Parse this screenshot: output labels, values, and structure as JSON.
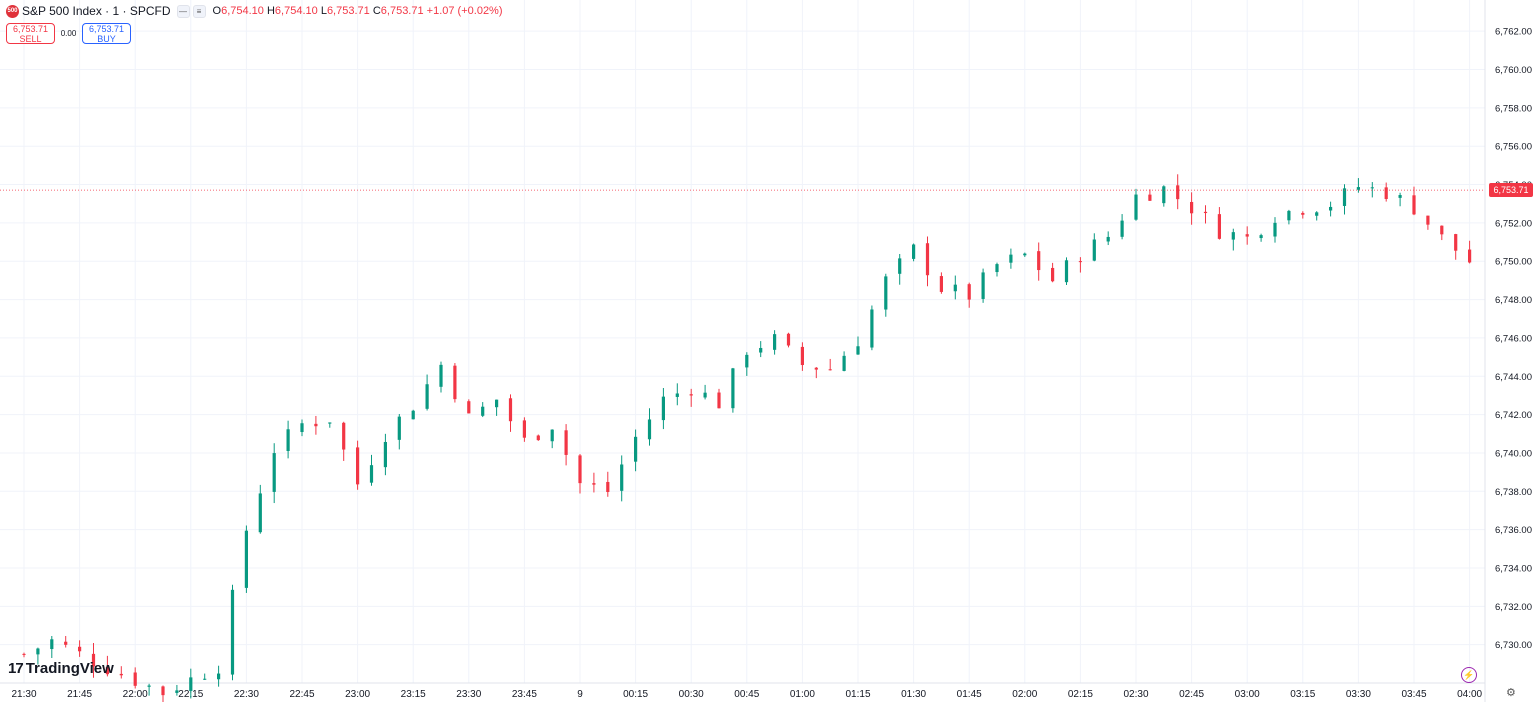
{
  "header": {
    "symbol_badge": "500",
    "symbol_title": "S&P 500 Index · 1 · SPCFD",
    "ohlc": {
      "o_label": "O",
      "o_value": "6,754.10",
      "h_label": "H",
      "h_value": "6,754.10",
      "l_label": "L",
      "l_value": "6,753.71",
      "c_label": "C",
      "c_value": "6,753.71",
      "change": "+1.07 (+0.02%)"
    }
  },
  "trade": {
    "sell_price": "6,753.71",
    "sell_label": "SELL",
    "spread": "0.00",
    "buy_price": "6,753.71",
    "buy_label": "BUY"
  },
  "branding": {
    "logo_text": "TradingView",
    "logo_icon": "tradingview-logo-icon"
  },
  "last_price_label": "6,753.71",
  "icons": {
    "flash": "lightning-icon",
    "settings": "gear-icon"
  },
  "colors": {
    "up": "#089981",
    "down": "#f23645",
    "last_price_line": "#f23645",
    "grid": "#f0f3fa"
  },
  "chart_data": {
    "type": "candlestick",
    "title": "S&P 500 Index · 1 · SPCFD",
    "x_ticks": [
      "21:30",
      "21:45",
      "22:00",
      "22:15",
      "22:30",
      "22:45",
      "23:00",
      "23:15",
      "23:30",
      "23:45",
      "9",
      "00:15",
      "00:30",
      "00:45",
      "01:00",
      "01:15",
      "01:30",
      "01:45",
      "02:00",
      "02:15",
      "02:30",
      "02:45",
      "03:00",
      "03:15",
      "03:30",
      "03:45",
      "04:00"
    ],
    "y_ticks": [
      "6,730.00",
      "6,732.00",
      "6,734.00",
      "6,736.00",
      "6,738.00",
      "6,740.00",
      "6,742.00",
      "6,744.00",
      "6,746.00",
      "6,748.00",
      "6,750.00",
      "6,752.00",
      "6,754.00",
      "6,756.00",
      "6,758.00",
      "6,760.00",
      "6,762.00"
    ],
    "y_range": [
      6728.0,
      6763.0
    ],
    "last_price": 6753.71,
    "grid": true,
    "close_path": [
      [
        0,
        6729.5
      ],
      [
        0.5,
        6730.2
      ],
      [
        1.5,
        6728.8
      ],
      [
        2.5,
        6727.5
      ],
      [
        3.5,
        6728.9
      ],
      [
        4.0,
        6736.0
      ],
      [
        4.5,
        6740.2
      ],
      [
        5.0,
        6741.5
      ],
      [
        5.5,
        6741.8
      ],
      [
        6.0,
        6738.4
      ],
      [
        6.5,
        6741.0
      ],
      [
        7.0,
        6742.5
      ],
      [
        7.5,
        6744.6
      ],
      [
        8.0,
        6741.8
      ],
      [
        8.5,
        6742.8
      ],
      [
        9.0,
        6740.6
      ],
      [
        9.5,
        6741.5
      ],
      [
        10.0,
        6738.4
      ],
      [
        10.5,
        6738.0
      ],
      [
        11.0,
        6740.8
      ],
      [
        11.5,
        6742.8
      ],
      [
        12.0,
        6743.4
      ],
      [
        12.5,
        6742.6
      ],
      [
        13.0,
        6745.4
      ],
      [
        13.5,
        6745.9
      ],
      [
        14.0,
        6744.6
      ],
      [
        14.5,
        6744.4
      ],
      [
        15.0,
        6745.9
      ],
      [
        15.5,
        6749.0
      ],
      [
        16.0,
        6750.6
      ],
      [
        16.5,
        6748.6
      ],
      [
        17.0,
        6748.2
      ],
      [
        17.5,
        6749.8
      ],
      [
        18.0,
        6750.3
      ],
      [
        18.5,
        6749.0
      ],
      [
        19.0,
        6750.4
      ],
      [
        19.5,
        6751.3
      ],
      [
        20.0,
        6753.4
      ],
      [
        20.5,
        6753.8
      ],
      [
        21.0,
        6752.8
      ],
      [
        21.5,
        6751.6
      ],
      [
        22.0,
        6751.2
      ],
      [
        22.5,
        6752.4
      ],
      [
        23.0,
        6752.8
      ],
      [
        23.5,
        6753.0
      ],
      [
        24.0,
        6753.9
      ],
      [
        24.5,
        6753.6
      ],
      [
        25.0,
        6752.8
      ],
      [
        25.5,
        6751.2
      ],
      [
        26.0,
        6750.0
      ],
      [
        26.5,
        6749.8
      ],
      [
        27.0,
        6751.4
      ],
      [
        27.5,
        6750.6
      ],
      [
        28.0,
        6749.9
      ],
      [
        28.5,
        6749.8
      ],
      [
        29.0,
        6749.0
      ],
      [
        29.5,
        6747.8
      ],
      [
        30.0,
        6747.6
      ],
      [
        30.5,
        6746.6
      ],
      [
        31.0,
        6748.1
      ],
      [
        31.5,
        6751.0
      ],
      [
        32.0,
        6751.8
      ],
      [
        32.5,
        6751.3
      ],
      [
        33.0,
        6750.5
      ],
      [
        33.5,
        6750.3
      ],
      [
        34.0,
        6749.8
      ],
      [
        34.5,
        6750.2
      ],
      [
        35.0,
        6751.8
      ],
      [
        35.5,
        6753.4
      ],
      [
        36.0,
        6752.9
      ],
      [
        36.5,
        6753.4
      ],
      [
        37.0,
        6753.6
      ],
      [
        37.5,
        6753.8
      ],
      [
        38.0,
        6753.3
      ],
      [
        38.5,
        6753.0
      ],
      [
        39.0,
        6752.0
      ],
      [
        39.5,
        6751.2
      ],
      [
        40.0,
        6750.5
      ],
      [
        40.5,
        6751.6
      ],
      [
        41.0,
        6751.4
      ],
      [
        41.5,
        6753.6
      ],
      [
        42.0,
        6752.6
      ],
      [
        42.5,
        6751.5
      ],
      [
        43.0,
        6751.0
      ],
      [
        43.5,
        6750.3
      ],
      [
        44.0,
        6751.8
      ],
      [
        44.5,
        6750.6
      ],
      [
        45.0,
        6750.3
      ],
      [
        45.5,
        6752.0
      ],
      [
        46.0,
        6752.8
      ],
      [
        46.5,
        6753.5
      ],
      [
        47.0,
        6754.6
      ],
      [
        47.5,
        6753.6
      ],
      [
        48.0,
        6754.4
      ],
      [
        48.5,
        6755.0
      ],
      [
        49.0,
        6754.6
      ],
      [
        49.5,
        6753.9
      ],
      [
        50.0,
        6752.2
      ],
      [
        50.5,
        6752.0
      ],
      [
        51.0,
        6751.6
      ],
      [
        51.5,
        6752.2
      ],
      [
        52.0,
        6751.4
      ],
      [
        52.5,
        6749.3
      ],
      [
        53.0,
        6748.6
      ],
      [
        53.5,
        6747.8
      ],
      [
        54.0,
        6746.6
      ],
      [
        54.5,
        6746.4
      ],
      [
        55.0,
        6747.1
      ],
      [
        55.5,
        6746.8
      ],
      [
        56.0,
        6746.6
      ],
      [
        56.5,
        6746.2
      ],
      [
        57.0,
        6746.9
      ],
      [
        57.5,
        6746.1
      ],
      [
        58.0,
        6747.2
      ],
      [
        58.5,
        6747.8
      ],
      [
        59.0,
        6749.0
      ],
      [
        59.5,
        6749.2
      ],
      [
        60.0,
        6748.3
      ],
      [
        60.5,
        6748.0
      ],
      [
        61.0,
        6749.1
      ],
      [
        61.5,
        6750.4
      ],
      [
        62.0,
        6751.6
      ],
      [
        62.5,
        6752.6
      ],
      [
        63.0,
        6753.6
      ],
      [
        63.5,
        6753.6
      ],
      [
        64.0,
        6753.8
      ],
      [
        64.5,
        6753.2
      ],
      [
        65.0,
        6753.0
      ],
      [
        65.5,
        6752.9
      ],
      [
        66.0,
        6752.5
      ],
      [
        66.5,
        6752.2
      ],
      [
        67.0,
        6751.8
      ],
      [
        67.5,
        6751.2
      ],
      [
        68.0,
        6752.0
      ],
      [
        68.5,
        6751.4
      ],
      [
        69.0,
        6750.9
      ],
      [
        69.5,
        6751.0
      ],
      [
        70.0,
        6751.3
      ],
      [
        70.5,
        6751.7
      ],
      [
        71.0,
        6752.0
      ],
      [
        71.5,
        6754.2
      ],
      [
        72.0,
        6754.4
      ],
      [
        72.5,
        6753.9
      ],
      [
        73.0,
        6754.2
      ],
      [
        73.5,
        6753.9
      ],
      [
        74.0,
        6753.6
      ],
      [
        74.5,
        6752.7
      ],
      [
        75.0,
        6753.71
      ]
    ],
    "notes": ""
  }
}
